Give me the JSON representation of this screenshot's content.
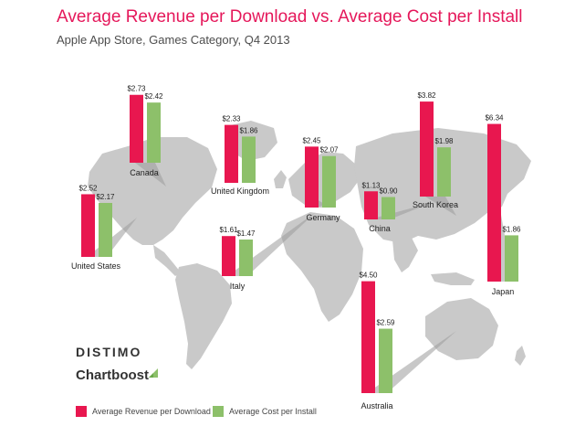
{
  "header": {
    "title": "Average Revenue per Download vs. Average Cost per Install",
    "subtitle": "Apple App Store, Games Category, Q4 2013"
  },
  "branding": {
    "logo1": "DISTIMO",
    "logo2": "Chartboost"
  },
  "colors": {
    "revenue": "#e8174f",
    "cost": "#8dc06a",
    "map": "#c9c9c9"
  },
  "chart_data": {
    "type": "bar",
    "title": "Average Revenue per Download vs. Average Cost per Install",
    "subtitle": "Apple App Store, Games Category, Q4 2013",
    "categories": [
      "United States",
      "Canada",
      "United Kingdom",
      "Germany",
      "Italy",
      "China",
      "South Korea",
      "Japan",
      "Australia"
    ],
    "series": [
      {
        "name": "Average Revenue per Download",
        "values": [
          2.52,
          2.73,
          2.33,
          2.45,
          1.61,
          1.13,
          3.82,
          6.34,
          4.5
        ],
        "labels": [
          "$2.52",
          "$2.73",
          "$2.33",
          "$2.45",
          "$1.61",
          "$1.13",
          "$3.82",
          "$6.34",
          "$4.50"
        ]
      },
      {
        "name": "Average Cost per Install",
        "values": [
          2.17,
          2.42,
          1.86,
          2.07,
          1.47,
          0.9,
          1.98,
          1.86,
          2.59
        ],
        "labels": [
          "$2.17",
          "$2.42",
          "$1.86",
          "$2.07",
          "$1.47",
          "$0.90",
          "$1.98",
          "$1.86",
          "$2.59"
        ]
      }
    ],
    "legend": {
      "position": "bottom-left"
    },
    "grid": false
  }
}
